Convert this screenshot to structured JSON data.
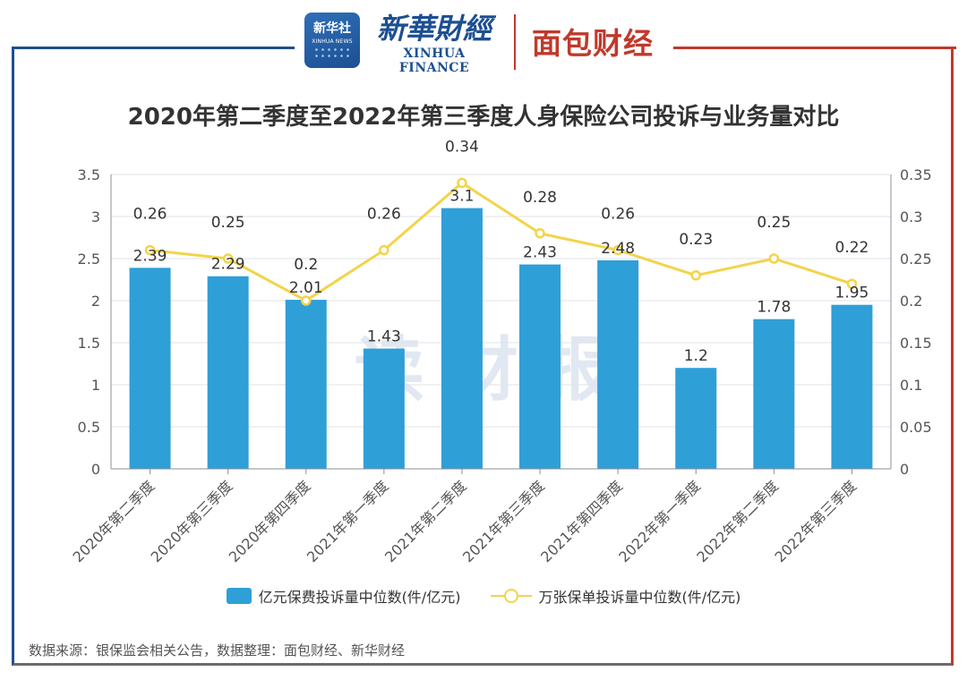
{
  "logos": {
    "xinhua_badge_cn": "新华社",
    "xinhua_badge_en": "XINHUA NEWS",
    "xinhua_finance_cn": "新華財經",
    "xinhua_finance_en": "XINHUA FINANCE",
    "mianbao": "面包财经"
  },
  "watermark": "读 财 报",
  "source": "数据来源：银保监会相关公告，数据整理：面包财经、新华财经",
  "colors": {
    "bar": "#2f9fd8",
    "line": "#f3d44a",
    "frame_left": "#1f4e8c",
    "frame_right": "#c0392b"
  },
  "chart_data": {
    "type": "bar",
    "title": "2020年第二季度至2022年第三季度人身保险公司投诉与业务量对比",
    "categories": [
      "2020年第二季度",
      "2020年第三季度",
      "2020年第四季度",
      "2021年第一季度",
      "2021年第二季度",
      "2021年第三季度",
      "2021年第四季度",
      "2022年第一季度",
      "2022年第二季度",
      "2022年第三季度"
    ],
    "series": [
      {
        "name": "亿元保费投诉量中位数(件/亿元)",
        "type": "bar",
        "axis": "left",
        "values": [
          2.39,
          2.29,
          2.01,
          1.43,
          3.1,
          2.43,
          2.48,
          1.2,
          1.78,
          1.95
        ]
      },
      {
        "name": "万张保单投诉量中位数(件/亿元)",
        "type": "line",
        "axis": "right",
        "values": [
          0.26,
          0.25,
          0.2,
          0.26,
          0.34,
          0.28,
          0.26,
          0.23,
          0.25,
          0.22
        ]
      }
    ],
    "ylim_left": [
      0,
      3.5
    ],
    "yticks_left": [
      "0",
      "0.5",
      "1",
      "1.5",
      "2",
      "2.5",
      "3",
      "3.5"
    ],
    "ylim_right": [
      0,
      0.35
    ],
    "yticks_right": [
      "0",
      "0.05",
      "0.1",
      "0.15",
      "0.2",
      "0.25",
      "0.3",
      "0.35"
    ],
    "legend_position": "bottom",
    "grid": true
  }
}
